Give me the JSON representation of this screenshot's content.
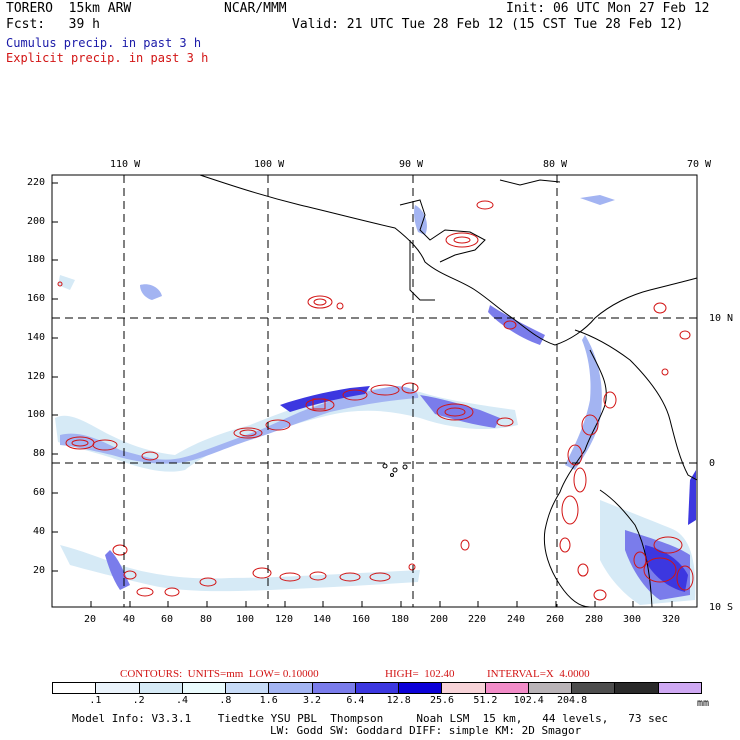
{
  "header": {
    "model": "TORERO  15km ARW",
    "org": "NCAR/MMM",
    "init": "Init: 06 UTC Mon 27 Feb 12",
    "fcst": "Fcst:   39 h",
    "valid": "Valid: 21 UTC Tue 28 Feb 12 (15 CST Tue 28 Feb 12)"
  },
  "legend_lines": {
    "cumulus": "Cumulus precip. in past 3 h",
    "explicit": "Explicit precip. in past 3 h"
  },
  "map": {
    "top_lon_labels": [
      "110 W",
      "100 W",
      "90 W",
      "80 W",
      "70 W"
    ],
    "right_lat_labels": [
      "10 N",
      "0",
      "10 S"
    ],
    "y_ticks": [
      "220",
      "200",
      "180",
      "160",
      "140",
      "120",
      "100",
      "80",
      "60",
      "40",
      "20"
    ],
    "x_ticks": [
      "20",
      "40",
      "60",
      "80",
      "100",
      "120",
      "140",
      "160",
      "180",
      "200",
      "220",
      "240",
      "260",
      "280",
      "300",
      "320"
    ]
  },
  "contours": {
    "units": "CONTOURS:  UNITS=mm  LOW= 0.10000",
    "high": "HIGH=  102.40",
    "interval": "INTERVAL=X  4.0000"
  },
  "colorbar": {
    "labels": [
      ".1",
      ".2",
      ".4",
      ".8",
      "1.6",
      "3.2",
      "6.4",
      "12.8",
      "25.6",
      "51.2",
      "102.4",
      "204.8"
    ],
    "unit": "mm",
    "colors": [
      "#ffffff",
      "#eaf3fb",
      "#d6eaf6",
      "#eafbfd",
      "#c7dbf7",
      "#a3b4f2",
      "#7a7ceb",
      "#3c37e0",
      "#0b00d8",
      "#f7d3d8",
      "#f28cc8",
      "#b9b3b7",
      "#4d4d4d",
      "#2a2a2a",
      "#cfa9f3"
    ]
  },
  "footer": {
    "line1": "Model Info: V3.3.1    Tiedtke YSU PBL  Thompson     Noah LSM  15 km,   44 levels,   73 sec",
    "line2": "LW: Godd SW: Goddard DIFF: simple KM: 2D Smagor"
  }
}
